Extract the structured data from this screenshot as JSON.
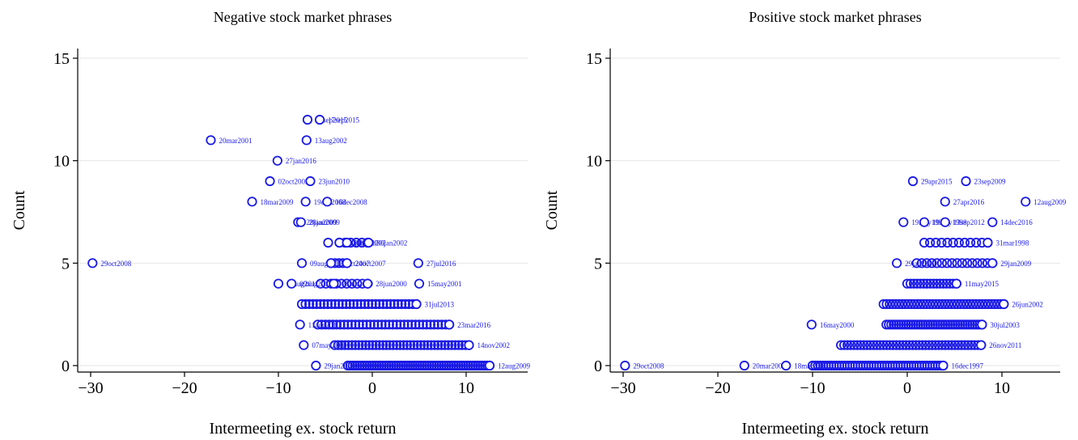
{
  "colors": {
    "marker": "#1a1ae6",
    "label": "#1a1ae6",
    "axis": "#000000",
    "grid": "#e6e6e6"
  },
  "chart_data": [
    {
      "type": "scatter",
      "title": "Negative stock market phrases",
      "xlabel": "Intermeeting ex. stock return",
      "ylabel": "Count",
      "xlim": [
        -31,
        16
      ],
      "ylim": [
        -0.4,
        16
      ],
      "xticks": [
        -30,
        -20,
        -10,
        0,
        10
      ],
      "yticks": [
        0,
        5,
        10,
        15
      ],
      "xtick_labels": [
        "−30",
        "−20",
        "−10",
        "0",
        "10"
      ],
      "ytick_labels": [
        "0",
        "5",
        "10",
        "15"
      ],
      "grid": true,
      "labeled_points": [
        {
          "x": -6.9,
          "y": 12,
          "label": "17sep2015"
        },
        {
          "x": -5.6,
          "y": 12,
          "label": "17sep2015"
        },
        {
          "x": -17.2,
          "y": 11,
          "label": "20mar2001"
        },
        {
          "x": -7.0,
          "y": 11,
          "label": "13aug2002"
        },
        {
          "x": -10.1,
          "y": 10,
          "label": "27jan2016"
        },
        {
          "x": -10.9,
          "y": 9,
          "label": "02oct2002"
        },
        {
          "x": -6.6,
          "y": 9,
          "label": "23jun2010"
        },
        {
          "x": -12.8,
          "y": 8,
          "label": "18mar2009"
        },
        {
          "x": -7.1,
          "y": 8,
          "label": "19dec2008"
        },
        {
          "x": -4.8,
          "y": 8,
          "label": "16dec2008"
        },
        {
          "x": -7.9,
          "y": 7,
          "label": "28jan2009"
        },
        {
          "x": -7.6,
          "y": 7,
          "label": "28jan2009"
        },
        {
          "x": -4.7,
          "y": 6,
          "label": "30jan2002"
        },
        {
          "x": -3.5,
          "y": 6,
          "label": "30jan2002"
        },
        {
          "x": -2.7,
          "y": 6,
          "label": "30jan2002"
        },
        {
          "x": -0.4,
          "y": 6,
          "label": "30jan2002"
        },
        {
          "x": -29.8,
          "y": 5,
          "label": "29oct2008"
        },
        {
          "x": -7.5,
          "y": 5,
          "label": "09aug2011"
        },
        {
          "x": -4.4,
          "y": 5,
          "label": "24oct2007"
        },
        {
          "x": -2.7,
          "y": 5,
          "label": "24oct2007"
        },
        {
          "x": 4.9,
          "y": 5,
          "label": "27jul2016"
        },
        {
          "x": -10.0,
          "y": 4,
          "label": "09aug2011"
        },
        {
          "x": -8.6,
          "y": 4,
          "label": "09aug2011"
        },
        {
          "x": -4.1,
          "y": 4,
          "label": "28jun2000"
        },
        {
          "x": -0.5,
          "y": 4,
          "label": "28jun2000"
        },
        {
          "x": 5.0,
          "y": 4,
          "label": "15may2001"
        },
        {
          "x": 4.7,
          "y": 3,
          "label": "31jul2013"
        },
        {
          "x": -7.7,
          "y": 2,
          "label": "11aug2010"
        },
        {
          "x": 8.2,
          "y": 2,
          "label": "23mar2016"
        },
        {
          "x": -7.3,
          "y": 1,
          "label": "07may2002"
        },
        {
          "x": 10.3,
          "y": 1,
          "label": "14nov2002"
        },
        {
          "x": -6.0,
          "y": 0,
          "label": "29jan2002"
        },
        {
          "x": 12.5,
          "y": 0,
          "label": "12aug2009"
        }
      ],
      "clusters": [
        {
          "y": 6,
          "xmin": -3.5,
          "xmax": -0.5,
          "n": 6
        },
        {
          "y": 5,
          "xmin": -4.4,
          "xmax": -2.7,
          "n": 5
        },
        {
          "y": 4,
          "xmin": -5.5,
          "xmax": -0.5,
          "n": 10
        },
        {
          "y": 3,
          "xmin": -7.5,
          "xmax": 4.7,
          "n": 32
        },
        {
          "y": 2,
          "xmin": -5.8,
          "xmax": 8.2,
          "n": 36
        },
        {
          "y": 1,
          "xmin": -4.0,
          "xmax": 10.3,
          "n": 40
        },
        {
          "y": 0,
          "xmin": -2.6,
          "xmax": 12.5,
          "n": 60
        }
      ]
    },
    {
      "type": "scatter",
      "title": "Positive stock market phrases",
      "xlabel": "Intermeeting ex. stock return",
      "ylabel": "Count",
      "xlim": [
        -31,
        16
      ],
      "ylim": [
        -0.4,
        16
      ],
      "xticks": [
        -30,
        -20,
        -10,
        0,
        10
      ],
      "yticks": [
        0,
        5,
        10,
        15
      ],
      "xtick_labels": [
        "−30",
        "−20",
        "−10",
        "0",
        "10"
      ],
      "ytick_labels": [
        "0",
        "5",
        "10",
        "15"
      ],
      "grid": true,
      "labeled_points": [
        {
          "x": 0.6,
          "y": 9,
          "label": "29apr2015"
        },
        {
          "x": 6.2,
          "y": 9,
          "label": "23sep2009"
        },
        {
          "x": 4.0,
          "y": 8,
          "label": "27apr2016"
        },
        {
          "x": 12.5,
          "y": 8,
          "label": "12aug2009"
        },
        {
          "x": -0.4,
          "y": 7,
          "label": "19may1998"
        },
        {
          "x": 1.8,
          "y": 7,
          "label": "19may1998"
        },
        {
          "x": 4.0,
          "y": 7,
          "label": "13sep2012"
        },
        {
          "x": 9.0,
          "y": 7,
          "label": "14dec2016"
        },
        {
          "x": 8.5,
          "y": 6,
          "label": "31mar1998"
        },
        {
          "x": -1.1,
          "y": 5,
          "label": "29jan2009"
        },
        {
          "x": 9.0,
          "y": 5,
          "label": "29jan2009"
        },
        {
          "x": 5.2,
          "y": 4,
          "label": "11may2015"
        },
        {
          "x": 10.2,
          "y": 3,
          "label": "26jun2002"
        },
        {
          "x": -10.1,
          "y": 2,
          "label": "16may2000"
        },
        {
          "x": 7.9,
          "y": 2,
          "label": "30jul2003"
        },
        {
          "x": 7.8,
          "y": 1,
          "label": "26nov2011"
        },
        {
          "x": -29.8,
          "y": 0,
          "label": "29oct2008"
        },
        {
          "x": -17.2,
          "y": 0,
          "label": "20mar2001"
        },
        {
          "x": -12.8,
          "y": 0,
          "label": "18mar2009"
        },
        {
          "x": 3.8,
          "y": 0,
          "label": "16dec1997"
        }
      ],
      "clusters": [
        {
          "y": 6,
          "xmin": 1.8,
          "xmax": 8.5,
          "n": 12
        },
        {
          "y": 5,
          "xmin": 1.0,
          "xmax": 9.0,
          "n": 16
        },
        {
          "y": 4,
          "xmin": 0.0,
          "xmax": 5.2,
          "n": 16
        },
        {
          "y": 3,
          "xmin": -2.5,
          "xmax": 10.2,
          "n": 40
        },
        {
          "y": 2,
          "xmin": -2.2,
          "xmax": 7.9,
          "n": 40
        },
        {
          "y": 1,
          "xmin": -7.0,
          "xmax": 7.8,
          "n": 44
        },
        {
          "y": 0,
          "xmin": -10.0,
          "xmax": 3.8,
          "n": 50
        }
      ]
    }
  ]
}
